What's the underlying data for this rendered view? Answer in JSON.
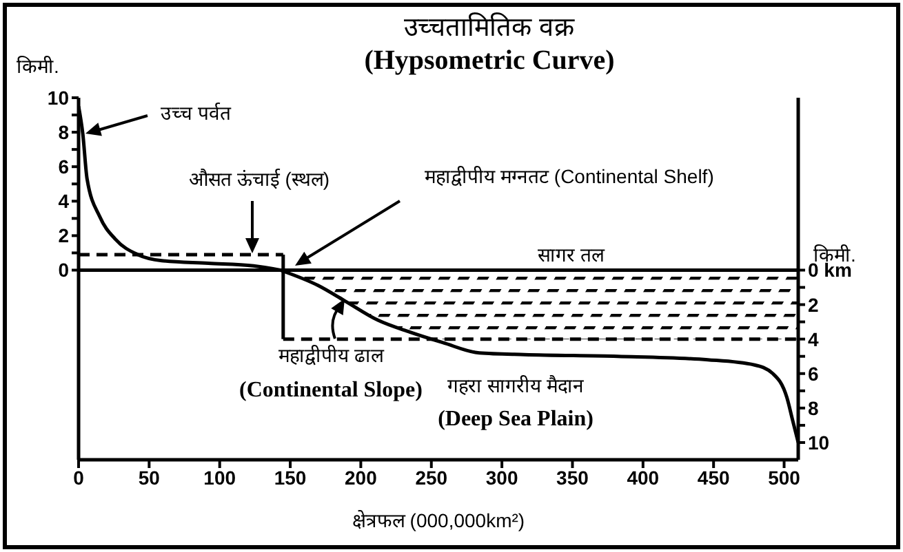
{
  "chart_data": {
    "type": "line",
    "title": "उच्चतामितिक वक्र",
    "subtitle": "(Hypsometric Curve)",
    "xlabel": "क्षेत्रफल (000,000km²)",
    "ylabel": "किमी.",
    "y2label": "किमी.",
    "xlim": [
      0,
      510
    ],
    "xticks": [
      0,
      50,
      100,
      150,
      200,
      250,
      300,
      350,
      400,
      450,
      500
    ],
    "ylim": [
      -11,
      10
    ],
    "yticks": [
      0,
      {
        "value": 1,
        "label": null
      },
      2,
      {
        "value": 3,
        "label": null
      },
      4,
      {
        "value": 5,
        "label": null
      },
      6,
      {
        "value": 7,
        "label": null
      },
      8,
      {
        "value": 9,
        "label": null
      },
      10
    ],
    "y2lim": [
      11,
      -10
    ],
    "y2ticks": [
      {
        "value": 0,
        "label": "0 km"
      },
      {
        "value": 1,
        "label": null
      },
      2,
      {
        "value": 3,
        "label": null
      },
      4,
      {
        "value": 5,
        "label": null
      },
      6,
      {
        "value": 7,
        "label": null
      },
      8,
      {
        "value": 9,
        "label": null
      },
      10
    ],
    "marker": "none",
    "series": [
      {
        "type": "area",
        "color": "#000000",
        "axis": "y2",
        "x": [
          145,
          170,
          189,
          212,
          235,
          250,
          510
        ],
        "values": [
          0,
          0.9,
          1.8,
          2.9,
          3.6,
          4,
          4
        ]
      },
      {
        "color": "#000000",
        "x": [
          0,
          3,
          6,
          15,
          26,
          42,
          59,
          92,
          124,
          143
        ],
        "values": [
          9.5,
          7.9,
          5.3,
          3.1,
          1.8,
          0.9,
          0.55,
          0.4,
          0.25,
          0
        ]
      },
      {
        "color": "#000000",
        "axis": "y2",
        "x": [
          143,
          170,
          189,
          212,
          235,
          258,
          284,
          316,
          382,
          446,
          479,
          492,
          502,
          506,
          510
        ],
        "values": [
          0,
          0.9,
          1.8,
          2.9,
          3.6,
          4.2,
          4.8,
          4.9,
          5.0,
          5.2,
          5.5,
          6.0,
          7.4,
          8.7,
          10
        ]
      },
      {
        "type": "line",
        "color": "#000000",
        "line_style": "dashed",
        "x": [
          0,
          145
        ],
        "values": [
          0.9,
          0.9
        ]
      },
      {
        "type": "line",
        "color": "#000000",
        "axis": "y2",
        "x": [
          145,
          145
        ],
        "values": [
          -0.9,
          4
        ]
      },
      {
        "type": "line",
        "color": "#000000",
        "axis": "y2",
        "line_style": "dashed",
        "x": [
          145,
          510
        ],
        "values": [
          4,
          4
        ]
      }
    ],
    "ref_lines": [
      {
        "axis": "y",
        "value": 0,
        "label": "सागर तल"
      }
    ],
    "annotations": [
      "उच्च पर्वत",
      "औसत ऊंचाई (स्थल)",
      "महाद्वीपीय मग्नतट (Continental Shelf)",
      "महाद्वीपीय ढाल",
      "(Continental Slope)",
      "गहरा सागरीय मैदान",
      "(Deep Sea Plain)"
    ]
  }
}
